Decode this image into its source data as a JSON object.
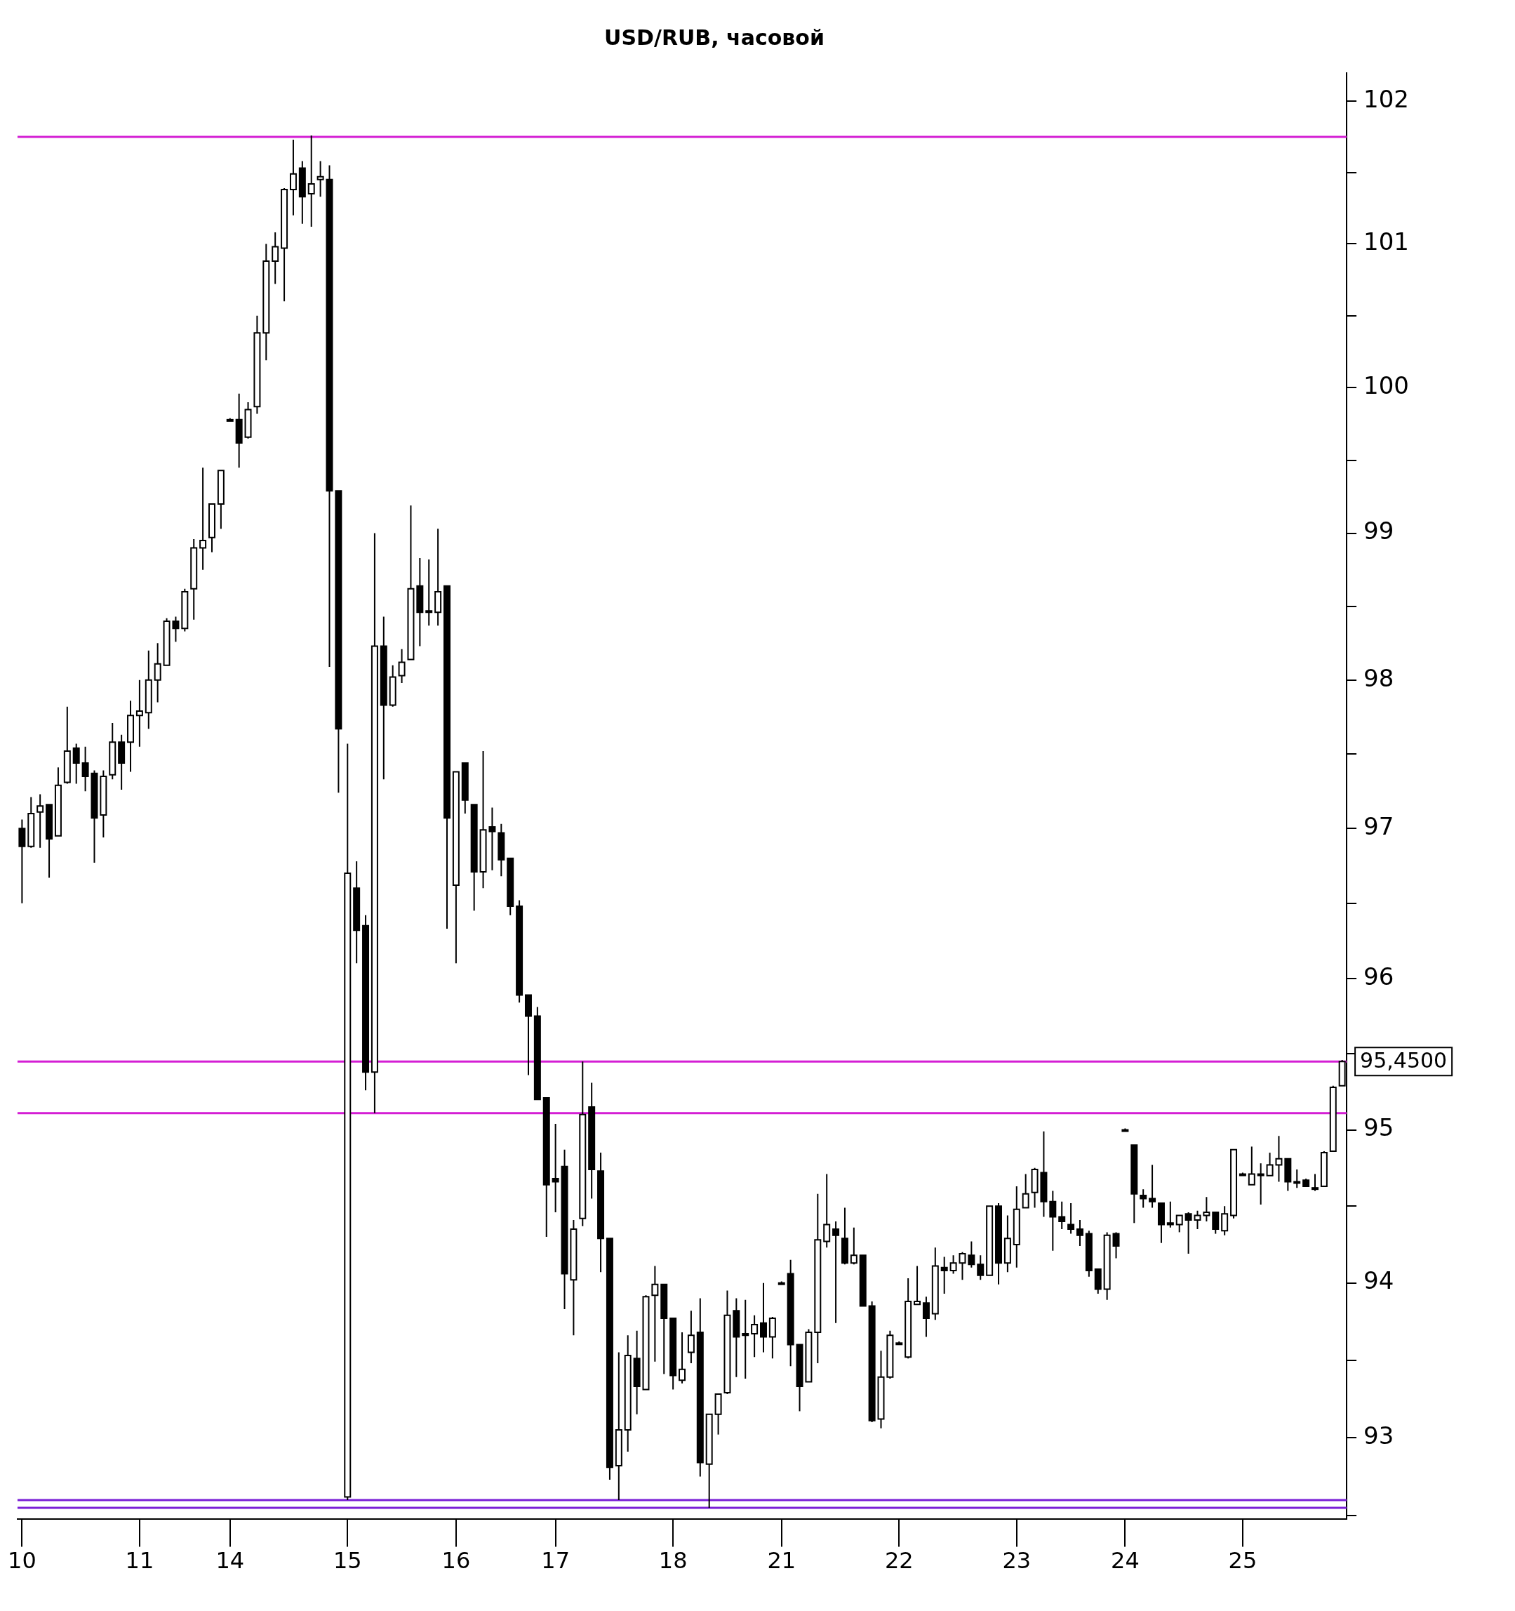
{
  "chart_data": {
    "type": "candlestick",
    "title": "USD/RUB, часовой",
    "log": true,
    "legend": false,
    "categories": [
      "10",
      null,
      null,
      null,
      null,
      null,
      null,
      null,
      null,
      null,
      null,
      null,
      null,
      "11",
      null,
      null,
      null,
      null,
      null,
      null,
      null,
      null,
      null,
      "14",
      null,
      null,
      null,
      null,
      null,
      null,
      null,
      null,
      null,
      null,
      null,
      null,
      "15",
      null,
      null,
      null,
      null,
      null,
      null,
      null,
      null,
      null,
      null,
      null,
      "16",
      null,
      null,
      null,
      null,
      null,
      null,
      null,
      null,
      null,
      null,
      "17",
      null,
      null,
      null,
      null,
      null,
      null,
      null,
      null,
      null,
      null,
      null,
      null,
      "18",
      null,
      null,
      null,
      null,
      null,
      null,
      null,
      null,
      null,
      null,
      null,
      "21",
      null,
      null,
      null,
      null,
      null,
      null,
      null,
      null,
      null,
      null,
      null,
      null,
      "22",
      null,
      null,
      null,
      null,
      null,
      null,
      null,
      null,
      null,
      null,
      null,
      null,
      "23",
      null,
      null,
      null,
      null,
      null,
      null,
      null,
      null,
      null,
      null,
      null,
      "24",
      null,
      null,
      null,
      null,
      null,
      null,
      null,
      null,
      null,
      null,
      null,
      null,
      "25",
      null,
      null,
      null,
      null,
      null,
      null,
      null,
      null,
      null,
      null,
      null
    ],
    "ohlc": [
      [
        97.0,
        97.06,
        96.5,
        96.88
      ],
      [
        96.88,
        97.21,
        96.87,
        97.1
      ],
      [
        97.11,
        97.23,
        96.87,
        97.15
      ],
      [
        97.16,
        97.16,
        96.67,
        96.93
      ],
      [
        96.95,
        97.41,
        96.95,
        97.29
      ],
      [
        97.31,
        97.82,
        97.3,
        97.52
      ],
      [
        97.54,
        97.57,
        97.3,
        97.44
      ],
      [
        97.44,
        97.55,
        97.25,
        97.35
      ],
      [
        97.37,
        97.39,
        96.77,
        97.07
      ],
      [
        97.09,
        97.39,
        96.94,
        97.35
      ],
      [
        97.36,
        97.71,
        97.33,
        97.58
      ],
      [
        97.58,
        97.63,
        97.26,
        97.44
      ],
      [
        97.58,
        97.86,
        97.38,
        97.76
      ],
      [
        97.76,
        98.0,
        97.55,
        97.79
      ],
      [
        97.78,
        98.2,
        97.67,
        98.0
      ],
      [
        98.0,
        98.25,
        97.85,
        98.11
      ],
      [
        98.1,
        98.42,
        98.1,
        98.4
      ],
      [
        98.4,
        98.43,
        98.26,
        98.35
      ],
      [
        98.35,
        98.62,
        98.33,
        98.6
      ],
      [
        98.62,
        98.96,
        98.41,
        98.9
      ],
      [
        98.9,
        99.45,
        98.75,
        98.95
      ],
      [
        98.97,
        99.2,
        98.87,
        99.2
      ],
      [
        99.2,
        99.43,
        99.03,
        99.43
      ],
      [
        99.78,
        99.79,
        99.77,
        99.78
      ],
      [
        99.78,
        99.96,
        99.45,
        99.62
      ],
      [
        99.66,
        99.9,
        99.65,
        99.85
      ],
      [
        99.87,
        100.5,
        99.82,
        100.38
      ],
      [
        100.38,
        101.0,
        100.19,
        100.88
      ],
      [
        100.88,
        101.08,
        100.72,
        100.98
      ],
      [
        100.97,
        101.39,
        100.6,
        101.38
      ],
      [
        101.38,
        101.73,
        101.2,
        101.49
      ],
      [
        101.53,
        101.58,
        101.14,
        101.33
      ],
      [
        101.35,
        101.76,
        101.12,
        101.42
      ],
      [
        101.45,
        101.58,
        101.33,
        101.47
      ],
      [
        101.45,
        101.55,
        98.09,
        99.29
      ],
      [
        99.29,
        99.29,
        97.24,
        97.67
      ],
      [
        92.62,
        97.57,
        92.6,
        96.7
      ],
      [
        96.6,
        96.78,
        96.1,
        96.32
      ],
      [
        96.35,
        96.42,
        95.26,
        95.38
      ],
      [
        95.38,
        99.0,
        95.11,
        98.23
      ],
      [
        98.23,
        98.43,
        97.33,
        97.83
      ],
      [
        97.83,
        98.1,
        97.82,
        98.02
      ],
      [
        98.03,
        98.21,
        97.98,
        98.12
      ],
      [
        98.14,
        99.19,
        98.14,
        98.62
      ],
      [
        98.64,
        98.83,
        98.23,
        98.46
      ],
      [
        98.47,
        98.82,
        98.37,
        98.46
      ],
      [
        98.46,
        99.03,
        98.37,
        98.6
      ],
      [
        98.64,
        98.64,
        96.33,
        97.07
      ],
      [
        96.62,
        97.38,
        96.1,
        97.38
      ],
      [
        97.44,
        97.44,
        97.1,
        97.19
      ],
      [
        97.16,
        97.16,
        96.45,
        96.71
      ],
      [
        96.71,
        97.52,
        96.6,
        96.99
      ],
      [
        97.01,
        97.14,
        96.72,
        96.98
      ],
      [
        96.97,
        97.03,
        96.68,
        96.79
      ],
      [
        96.8,
        96.8,
        96.42,
        96.48
      ],
      [
        96.48,
        96.52,
        95.84,
        95.89
      ],
      [
        95.89,
        95.89,
        95.36,
        95.75
      ],
      [
        95.75,
        95.81,
        95.2,
        95.2
      ],
      [
        95.21,
        95.21,
        94.3,
        94.64
      ],
      [
        94.68,
        95.04,
        94.46,
        94.66
      ],
      [
        94.76,
        94.87,
        93.83,
        94.06
      ],
      [
        94.02,
        94.41,
        93.66,
        94.35
      ],
      [
        94.42,
        95.45,
        94.37,
        95.1
      ],
      [
        95.15,
        95.31,
        94.55,
        94.74
      ],
      [
        94.73,
        94.85,
        94.07,
        94.29
      ],
      [
        94.29,
        94.29,
        92.73,
        92.81
      ],
      [
        92.82,
        93.55,
        92.6,
        93.05
      ],
      [
        93.05,
        93.66,
        92.91,
        93.53
      ],
      [
        93.51,
        93.69,
        93.15,
        93.33
      ],
      [
        93.31,
        93.92,
        93.31,
        93.91
      ],
      [
        93.92,
        94.11,
        93.49,
        93.99
      ],
      [
        93.99,
        93.99,
        93.41,
        93.77
      ],
      [
        93.77,
        93.77,
        93.31,
        93.4
      ],
      [
        93.37,
        93.68,
        93.35,
        93.44
      ],
      [
        93.55,
        93.82,
        93.48,
        93.66
      ],
      [
        93.68,
        93.9,
        92.75,
        92.84
      ],
      [
        92.83,
        93.15,
        92.55,
        93.15
      ],
      [
        93.15,
        93.28,
        93.02,
        93.28
      ],
      [
        93.29,
        93.95,
        93.28,
        93.79
      ],
      [
        93.82,
        93.9,
        93.39,
        93.65
      ],
      [
        93.67,
        93.89,
        93.38,
        93.66
      ],
      [
        93.67,
        93.79,
        93.52,
        93.73
      ],
      [
        93.74,
        94.0,
        93.55,
        93.65
      ],
      [
        93.65,
        93.78,
        93.51,
        93.77
      ],
      [
        94.0,
        94.01,
        93.99,
        94.0
      ],
      [
        94.06,
        94.15,
        93.46,
        93.6
      ],
      [
        93.6,
        93.6,
        93.17,
        93.33
      ],
      [
        93.36,
        93.7,
        93.36,
        93.68
      ],
      [
        93.68,
        94.58,
        93.48,
        94.28
      ],
      [
        94.27,
        94.71,
        94.23,
        94.38
      ],
      [
        94.35,
        94.4,
        93.74,
        94.31
      ],
      [
        94.29,
        94.49,
        94.12,
        94.13
      ],
      [
        94.13,
        94.36,
        94.12,
        94.18
      ],
      [
        94.18,
        94.18,
        93.85,
        93.85
      ],
      [
        93.85,
        93.88,
        93.1,
        93.11
      ],
      [
        93.12,
        93.56,
        93.06,
        93.39
      ],
      [
        93.39,
        93.69,
        93.38,
        93.66
      ],
      [
        93.61,
        93.62,
        93.6,
        93.61
      ],
      [
        93.52,
        94.03,
        93.51,
        93.88
      ],
      [
        93.86,
        94.11,
        93.86,
        93.88
      ],
      [
        93.87,
        93.91,
        93.65,
        93.77
      ],
      [
        93.8,
        94.23,
        93.76,
        94.11
      ],
      [
        94.1,
        94.17,
        93.93,
        94.08
      ],
      [
        94.08,
        94.18,
        94.06,
        94.13
      ],
      [
        94.13,
        94.2,
        94.02,
        94.19
      ],
      [
        94.18,
        94.27,
        94.1,
        94.12
      ],
      [
        94.12,
        94.18,
        94.02,
        94.05
      ],
      [
        94.05,
        94.5,
        94.05,
        94.5
      ],
      [
        94.5,
        94.52,
        93.99,
        94.13
      ],
      [
        94.13,
        94.44,
        94.07,
        94.29
      ],
      [
        94.25,
        94.63,
        94.1,
        94.48
      ],
      [
        94.49,
        94.71,
        94.49,
        94.58
      ],
      [
        94.59,
        94.75,
        94.49,
        94.74
      ],
      [
        94.72,
        94.99,
        94.43,
        94.53
      ],
      [
        94.53,
        94.6,
        94.21,
        94.43
      ],
      [
        94.43,
        94.53,
        94.35,
        94.4
      ],
      [
        94.38,
        94.52,
        94.32,
        94.35
      ],
      [
        94.35,
        94.41,
        94.24,
        94.31
      ],
      [
        94.32,
        94.34,
        94.04,
        94.08
      ],
      [
        94.09,
        94.09,
        93.93,
        93.96
      ],
      [
        93.96,
        94.33,
        93.89,
        94.31
      ],
      [
        94.32,
        94.33,
        94.16,
        94.24
      ],
      [
        95.0,
        95.01,
        94.99,
        95.0
      ],
      [
        94.9,
        94.9,
        94.39,
        94.58
      ],
      [
        94.57,
        94.61,
        94.49,
        94.55
      ],
      [
        94.55,
        94.77,
        94.49,
        94.53
      ],
      [
        94.52,
        94.52,
        94.26,
        94.38
      ],
      [
        94.39,
        94.53,
        94.36,
        94.38
      ],
      [
        94.38,
        94.44,
        94.33,
        94.44
      ],
      [
        94.45,
        94.46,
        94.19,
        94.41
      ],
      [
        94.41,
        94.47,
        94.35,
        94.44
      ],
      [
        94.44,
        94.56,
        94.4,
        94.46
      ],
      [
        94.46,
        94.46,
        94.32,
        94.35
      ],
      [
        94.34,
        94.5,
        94.31,
        94.45
      ],
      [
        94.44,
        94.87,
        94.42,
        94.87
      ],
      [
        94.71,
        94.72,
        94.7,
        94.71
      ],
      [
        94.64,
        94.89,
        94.64,
        94.71
      ],
      [
        94.71,
        94.78,
        94.51,
        94.71
      ],
      [
        94.7,
        94.85,
        94.7,
        94.77
      ],
      [
        94.77,
        94.96,
        94.66,
        94.81
      ],
      [
        94.81,
        94.81,
        94.6,
        94.66
      ],
      [
        94.66,
        94.74,
        94.62,
        94.66
      ],
      [
        94.67,
        94.68,
        94.63,
        94.63
      ],
      [
        94.62,
        94.71,
        94.6,
        94.62
      ],
      [
        94.63,
        94.86,
        94.63,
        94.85
      ],
      [
        94.86,
        95.29,
        94.86,
        95.28
      ],
      [
        95.29,
        95.46,
        95.29,
        95.45
      ]
    ],
    "ylim": [
      92.48,
      102.2
    ],
    "yticks": [
      {
        "value": 92.5,
        "label": null
      },
      93,
      {
        "value": 93.5,
        "label": null
      },
      94,
      {
        "value": 94.5,
        "label": null
      },
      95,
      {
        "value": 95.5,
        "label": null
      },
      96,
      {
        "value": 96.5,
        "label": null
      },
      97,
      {
        "value": 97.5,
        "label": null
      },
      98,
      {
        "value": 98.5,
        "label": null
      },
      99,
      {
        "value": 99.5,
        "label": null
      },
      100,
      {
        "value": 100.5,
        "label": null
      },
      101,
      {
        "value": 101.5,
        "label": null
      },
      102
    ],
    "ref_lines": [
      {
        "axis": "y",
        "value": 101.75,
        "color": "#d41ed4"
      },
      {
        "axis": "y",
        "value": 95.45,
        "color": "#d41ed4",
        "label": "95,4500"
      },
      {
        "axis": "y",
        "value": 95.11,
        "color": "#d41ed4"
      },
      {
        "axis": "y",
        "value": 92.6,
        "color": "#7a1fd6"
      },
      {
        "axis": "y",
        "value": 92.55,
        "color": "#7a1fd6"
      }
    ]
  }
}
